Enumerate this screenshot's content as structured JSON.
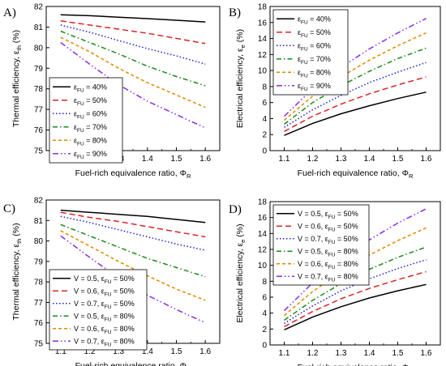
{
  "colors": {
    "black": "#000000",
    "red": "#d62728",
    "blue": "#1f1fd1",
    "green": "#1a8a1a",
    "orange": "#e08a00",
    "purple": "#8a2be2"
  },
  "chart_data": [
    {
      "panel": "A)",
      "type": "line",
      "xlabel": "Fuel-rich equivalence ratio, ΦR",
      "ylabel": "Thermal efficiency, εth (%)",
      "xlim": [
        1.05,
        1.65
      ],
      "ylim": [
        75,
        82
      ],
      "xticks": [
        "1.1",
        "1.2",
        "1.3",
        "1.4",
        "1.5",
        "1.6"
      ],
      "yticks": [
        "75",
        "76",
        "77",
        "78",
        "79",
        "80",
        "81",
        "82"
      ],
      "legend_position": "bottom-left",
      "x": [
        1.1,
        1.2,
        1.3,
        1.4,
        1.5,
        1.6
      ],
      "series": [
        {
          "name": "εFU = 40%",
          "color": "black",
          "dash": "solid",
          "values": [
            81.6,
            81.55,
            81.48,
            81.41,
            81.33,
            81.25
          ]
        },
        {
          "name": "εFU = 50%",
          "color": "red",
          "dash": "long-dash",
          "values": [
            81.3,
            81.1,
            80.9,
            80.7,
            80.45,
            80.2
          ]
        },
        {
          "name": "εFU = 60%",
          "color": "blue",
          "dash": "dot",
          "values": [
            81.1,
            80.75,
            80.35,
            79.95,
            79.6,
            79.2
          ]
        },
        {
          "name": "εFU = 70%",
          "color": "green",
          "dash": "dash-dot",
          "values": [
            80.8,
            80.25,
            79.7,
            79.1,
            78.6,
            78.15
          ]
        },
        {
          "name": "εFU = 80%",
          "color": "orange",
          "dash": "short-dash",
          "values": [
            80.5,
            79.8,
            79.0,
            78.3,
            77.7,
            77.1
          ]
        },
        {
          "name": "εFU = 90%",
          "color": "purple",
          "dash": "dash-dot-dot",
          "values": [
            80.25,
            79.2,
            78.2,
            77.4,
            76.75,
            76.1
          ]
        }
      ]
    },
    {
      "panel": "B)",
      "type": "line",
      "xlabel": "Fuel-rich equivalence ratio, ΦR",
      "ylabel": "Electrical efficiency, εe (%)",
      "xlim": [
        1.05,
        1.65
      ],
      "ylim": [
        0,
        18
      ],
      "xticks": [
        "1.1",
        "1.2",
        "1.3",
        "1.4",
        "1.5",
        "1.6"
      ],
      "yticks": [
        "0",
        "2",
        "4",
        "6",
        "8",
        "10",
        "12",
        "14",
        "16",
        "18"
      ],
      "legend_position": "top-left",
      "x": [
        1.1,
        1.2,
        1.3,
        1.4,
        1.5,
        1.6
      ],
      "series": [
        {
          "name": "εFU = 40%",
          "color": "black",
          "dash": "solid",
          "values": [
            1.9,
            3.4,
            4.6,
            5.6,
            6.5,
            7.3
          ]
        },
        {
          "name": "εFU = 50%",
          "color": "red",
          "dash": "long-dash",
          "values": [
            2.4,
            4.3,
            5.8,
            7.1,
            8.2,
            9.2
          ]
        },
        {
          "name": "εFU = 60%",
          "color": "blue",
          "dash": "dot",
          "values": [
            2.9,
            5.1,
            6.9,
            8.5,
            9.8,
            11.0
          ]
        },
        {
          "name": "εFU = 70%",
          "color": "green",
          "dash": "dash-dot",
          "values": [
            3.3,
            6.0,
            8.1,
            9.9,
            11.5,
            12.8
          ]
        },
        {
          "name": "εFU = 80%",
          "color": "orange",
          "dash": "short-dash",
          "values": [
            3.8,
            6.8,
            9.2,
            11.3,
            13.1,
            14.7
          ]
        },
        {
          "name": "εFU = 90%",
          "color": "purple",
          "dash": "dash-dot-dot",
          "values": [
            4.3,
            7.7,
            10.4,
            12.7,
            14.7,
            16.5
          ]
        }
      ]
    },
    {
      "panel": "C)",
      "type": "line",
      "xlabel": "Fuel-rich equivalence ratio, ΦR",
      "ylabel": "Thermal efficiency, εth (%)",
      "xlim": [
        1.05,
        1.65
      ],
      "ylim": [
        75,
        82
      ],
      "xticks": [
        "1.1",
        "1.2",
        "1.3",
        "1.4",
        "1.5",
        "1.6"
      ],
      "yticks": [
        "75",
        "76",
        "77",
        "78",
        "79",
        "80",
        "81",
        "82"
      ],
      "legend_position": "bottom-left",
      "x": [
        1.1,
        1.2,
        1.3,
        1.4,
        1.5,
        1.6
      ],
      "series": [
        {
          "name": "V = 0.5, εFU = 50%",
          "color": "black",
          "dash": "solid",
          "values": [
            81.5,
            81.4,
            81.3,
            81.2,
            81.05,
            80.9
          ]
        },
        {
          "name": "V = 0.6, εFU = 50%",
          "color": "red",
          "dash": "long-dash",
          "values": [
            81.4,
            81.15,
            80.95,
            80.7,
            80.45,
            80.2
          ]
        },
        {
          "name": "V = 0.7, εFU = 50%",
          "color": "blue",
          "dash": "dot",
          "values": [
            81.2,
            80.9,
            80.55,
            80.2,
            79.85,
            79.55
          ]
        },
        {
          "name": "V = 0.5, εFU = 80%",
          "color": "green",
          "dash": "dash-dot",
          "values": [
            80.8,
            80.25,
            79.7,
            79.15,
            78.7,
            78.25
          ]
        },
        {
          "name": "V = 0.6, εFU = 80%",
          "color": "orange",
          "dash": "short-dash",
          "values": [
            80.5,
            79.75,
            79.0,
            78.3,
            77.65,
            77.1
          ]
        },
        {
          "name": "V = 0.7, εFU = 80%",
          "color": "purple",
          "dash": "dash-dot-dot",
          "values": [
            80.25,
            79.2,
            78.2,
            77.35,
            76.65,
            76.0
          ]
        }
      ]
    },
    {
      "panel": "D)",
      "type": "line",
      "xlabel": "Fuel-rich equivalence ratio, ΦR",
      "ylabel": "Electrical efficiency, εe (%)",
      "xlim": [
        1.05,
        1.65
      ],
      "ylim": [
        0,
        18
      ],
      "xticks": [
        "1.1",
        "1.2",
        "1.3",
        "1.4",
        "1.5",
        "1.6"
      ],
      "yticks": [
        "0",
        "2",
        "4",
        "6",
        "8",
        "10",
        "12",
        "14",
        "16",
        "18"
      ],
      "legend_position": "top-left",
      "x": [
        1.1,
        1.2,
        1.3,
        1.4,
        1.5,
        1.6
      ],
      "series": [
        {
          "name": "V = 0.5, εFU = 50%",
          "color": "black",
          "dash": "solid",
          "values": [
            1.9,
            3.5,
            4.8,
            5.9,
            6.8,
            7.6
          ]
        },
        {
          "name": "V = 0.6, εFU = 50%",
          "color": "red",
          "dash": "long-dash",
          "values": [
            2.3,
            4.2,
            5.8,
            7.1,
            8.2,
            9.2
          ]
        },
        {
          "name": "V = 0.7, εFU = 50%",
          "color": "blue",
          "dash": "dot",
          "values": [
            2.7,
            4.9,
            6.8,
            8.3,
            9.6,
            10.7
          ]
        },
        {
          "name": "V = 0.5, εFU = 80%",
          "color": "green",
          "dash": "dash-dot",
          "values": [
            3.1,
            5.6,
            7.7,
            9.5,
            11.0,
            12.3
          ]
        },
        {
          "name": "V = 0.6, εFU = 80%",
          "color": "orange",
          "dash": "short-dash",
          "values": [
            3.7,
            6.7,
            9.2,
            11.3,
            13.1,
            14.7
          ]
        },
        {
          "name": "V = 0.7, εFU = 80%",
          "color": "purple",
          "dash": "dash-dot-dot",
          "values": [
            4.3,
            7.8,
            10.7,
            13.2,
            15.3,
            17.1
          ]
        }
      ]
    }
  ]
}
